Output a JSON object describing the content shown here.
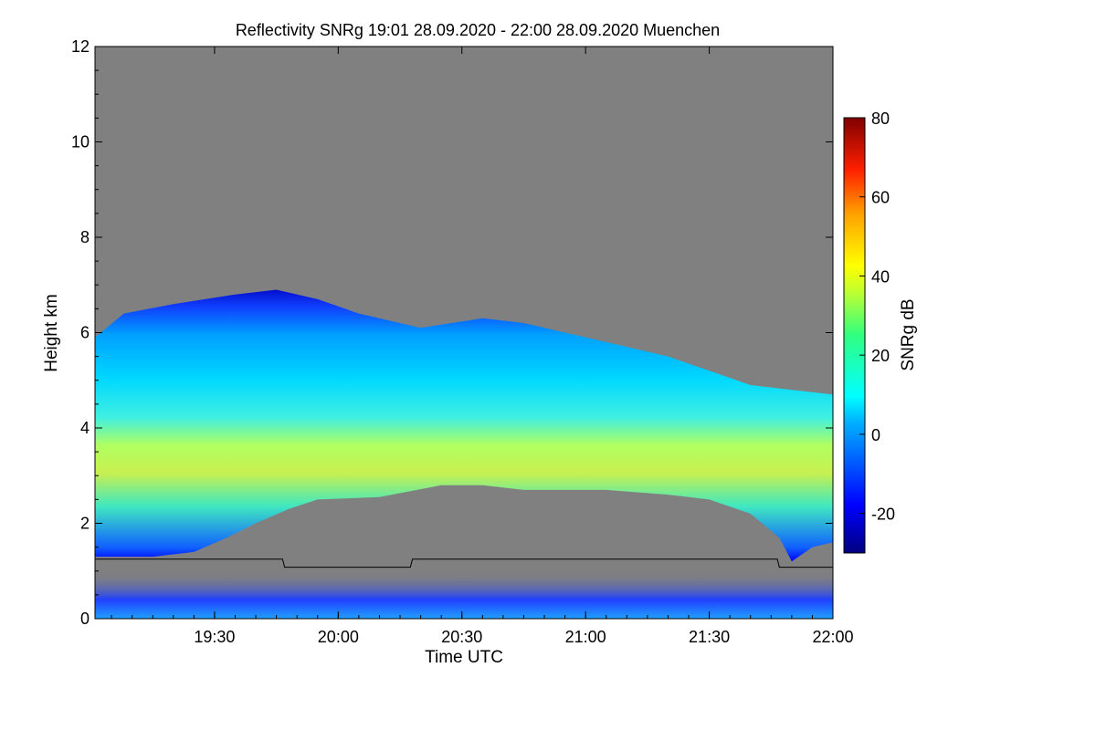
{
  "chart_data": {
    "type": "heatmap",
    "title": "Reflectivity SNRg   19:01 28.09.2020 - 22:00 28.09.2020 Muenchen",
    "xlabel": "Time UTC",
    "ylabel": "Height km",
    "colorbar_label": "SNRg dB",
    "xlim": [
      "19:01",
      "22:00"
    ],
    "ylim": [
      0,
      12
    ],
    "x_ticks": [
      "19:30",
      "20:00",
      "20:30",
      "21:00",
      "21:30",
      "22:00"
    ],
    "x_ticks_min": [
      30,
      60,
      90,
      120,
      150,
      180
    ],
    "y_ticks": [
      "0",
      "2",
      "4",
      "6",
      "8",
      "10",
      "12"
    ],
    "y_ticks_val": [
      0,
      2,
      4,
      6,
      8,
      10,
      12
    ],
    "colorbar_ticks": [
      "-20",
      "0",
      "20",
      "40",
      "60",
      "80"
    ],
    "colorbar_ticks_val": [
      -20,
      0,
      20,
      40,
      60,
      80
    ],
    "colorbar_range": [
      -30,
      80
    ],
    "background_color": "#808080",
    "cloud_top_km": [
      [
        1,
        5.9
      ],
      [
        8,
        6.4
      ],
      [
        20,
        6.6
      ],
      [
        35,
        6.8
      ],
      [
        45,
        6.9
      ],
      [
        55,
        6.7
      ],
      [
        65,
        6.4
      ],
      [
        80,
        6.1
      ],
      [
        95,
        6.3
      ],
      [
        105,
        6.2
      ],
      [
        115,
        6.0
      ],
      [
        125,
        5.8
      ],
      [
        140,
        5.5
      ],
      [
        150,
        5.2
      ],
      [
        160,
        4.9
      ],
      [
        170,
        4.8
      ],
      [
        180,
        4.7
      ]
    ],
    "cloud_base_km": [
      [
        1,
        1.3
      ],
      [
        8,
        1.3
      ],
      [
        15,
        1.3
      ],
      [
        25,
        1.4
      ],
      [
        33,
        1.7
      ],
      [
        40,
        2.0
      ],
      [
        48,
        2.3
      ],
      [
        55,
        2.5
      ],
      [
        70,
        2.55
      ],
      [
        85,
        2.8
      ],
      [
        95,
        2.8
      ],
      [
        105,
        2.7
      ],
      [
        125,
        2.7
      ],
      [
        140,
        2.6
      ],
      [
        150,
        2.5
      ],
      [
        160,
        2.2
      ],
      [
        167,
        1.7
      ],
      [
        170,
        1.2
      ],
      [
        175,
        1.5
      ],
      [
        180,
        1.6
      ]
    ],
    "boundary_layer_km": [
      [
        1,
        1.25
      ],
      [
        46.5,
        1.25
      ],
      [
        47,
        1.08
      ],
      [
        77.5,
        1.08
      ],
      [
        78,
        1.25
      ],
      [
        166.5,
        1.25
      ],
      [
        167,
        1.08
      ],
      [
        180,
        1.08
      ]
    ]
  }
}
